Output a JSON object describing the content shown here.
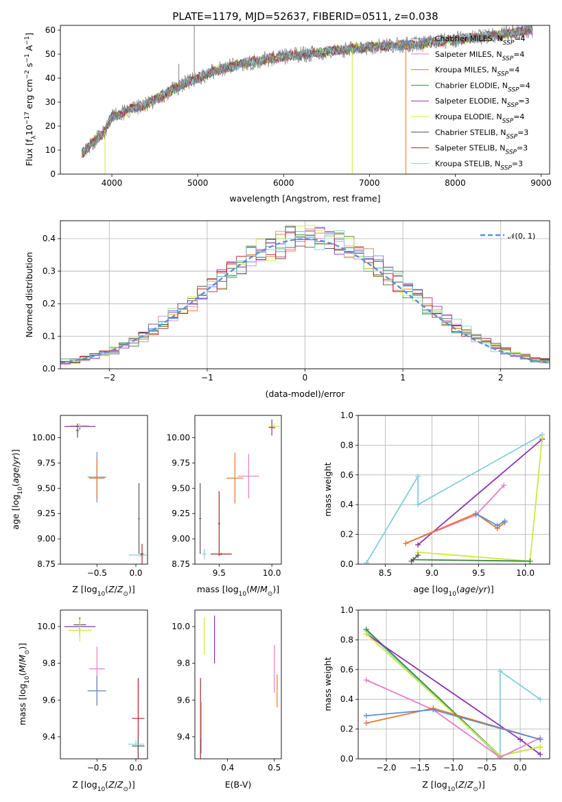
{
  "figure": {
    "title": "PLATE=1179, MJD=52637, FIBERID=0511, z=0.038"
  },
  "colors": {
    "Chabrier MILES": "#5b8fd6",
    "Salpeter MILES": "#e57ec4",
    "Kroupa MILES": "#e8762a",
    "Chabrier ELODIE": "#3d8a3d",
    "Salpeter ELODIE": "#8a2fb3",
    "Kroupa ELODIE": "#cfe83a",
    "Chabrier STELIB": "#555555",
    "Salpeter STELIB": "#b32020",
    "Kroupa STELIB": "#7fd0d6",
    "data": "#808080",
    "normal": "#5b8fd6"
  },
  "chart_data": [
    {
      "id": "spectrum",
      "type": "line",
      "title": "PLATE=1179, MJD=52637, FIBERID=0511, z=0.038",
      "xlabel": "wavelength [Angstrom, rest frame]",
      "ylabel": "Flux [f_λ 10^-17 erg cm^-2 s^-1 A^-1]",
      "xlim": [
        3400,
        9100
      ],
      "ylim": [
        0,
        62
      ],
      "xticks": [
        4000,
        5000,
        6000,
        7000,
        8000,
        9000
      ],
      "yticks": [
        0,
        10,
        20,
        30,
        40,
        50,
        60
      ],
      "legend_position": "top-right",
      "legend": [
        "Chabrier MILES, N_SSP=4",
        "Salpeter MILES, N_SSP=4",
        "Kroupa MILES, N_SSP=4",
        "Chabrier ELODIE, N_SSP=4",
        "Salpeter ELODIE, N_SSP=3",
        "Kroupa ELODIE, N_SSP=4",
        "Chabrier STELIB, N_SSP=3",
        "Salpeter STELIB, N_SSP=3",
        "Kroupa STELIB, N_SSP=3"
      ],
      "legend_colors": [
        "#5b8fd6",
        "#e57ec4",
        "#e8762a",
        "#3d8a3d",
        "#8a2fb3",
        "#cfe83a",
        "#555555",
        "#b32020",
        "#7fd0d6"
      ],
      "continuum": {
        "x": [
          3650,
          3700,
          3800,
          3900,
          4000,
          4100,
          4200,
          4400,
          4600,
          4800,
          5000,
          5200,
          5500,
          6000,
          6500,
          7000,
          7500,
          8000,
          8500,
          8900
        ],
        "y": [
          9,
          10,
          14,
          17,
          24,
          25,
          27,
          29,
          33,
          37,
          40,
          43,
          46,
          49,
          51,
          53,
          54,
          56,
          58,
          60
        ]
      },
      "spikes": [
        {
          "x": 3920,
          "y": 0,
          "series": "Kroupa ELODIE"
        },
        {
          "x": 6800,
          "y": 0,
          "series": "Kroupa ELODIE"
        },
        {
          "x": 7425,
          "y": 0,
          "series": "Kroupa MILES"
        },
        {
          "x": 4960,
          "y": 62,
          "series": "data"
        },
        {
          "x": 4780,
          "y": 46,
          "series": "data"
        }
      ]
    },
    {
      "id": "residuals",
      "type": "line",
      "xlabel": "(data-model)/error",
      "ylabel": "Normed distribution",
      "xlim": [
        -2.5,
        2.5
      ],
      "ylim": [
        0,
        0.455
      ],
      "xticks": [
        -2,
        -1,
        0,
        1,
        2
      ],
      "xticklabels": [
        "−2",
        "−1",
        "0",
        "1",
        "2"
      ],
      "yticks": [
        0.0,
        0.1,
        0.2,
        0.3,
        0.4
      ],
      "yticklabels": [
        "0.0",
        "0.1",
        "0.2",
        "0.3",
        "0.4"
      ],
      "grid": true,
      "legend_position": "top-right",
      "legend": [
        "𝒩(0, 1)"
      ],
      "normal_mean": 0,
      "normal_sigma": 1,
      "bin_width": 0.1
    },
    {
      "id": "age_vs_z",
      "type": "scatter",
      "xlabel": "Z [log10(Z/Z_sun)]",
      "ylabel": "age  [log10(age/yr)]",
      "xlim": [
        -0.97,
        0.15
      ],
      "ylim": [
        8.75,
        10.22
      ],
      "xticks": [
        -0.5,
        0.0
      ],
      "xticklabels": [
        "−0.5",
        "0.0"
      ],
      "yticks": [
        8.75,
        9.0,
        9.25,
        9.5,
        9.75,
        10.0
      ],
      "yticklabels": [
        "8.75",
        "9.00",
        "9.25",
        "9.50",
        "9.75",
        "10.00"
      ],
      "points": [
        {
          "x": -0.72,
          "y": 10.11,
          "xerr": 0.2,
          "yerr": 0.03,
          "series": "Salpeter ELODIE"
        },
        {
          "x": -0.72,
          "y": 10.12,
          "xerr": 0.12,
          "yerr": 0.02,
          "series": "Kroupa ELODIE"
        },
        {
          "x": -0.75,
          "y": 10.07,
          "xerr": 0.02,
          "yerr": 0.07,
          "series": "Chabrier STELIB"
        },
        {
          "x": -0.5,
          "y": 9.61,
          "xerr": 0.12,
          "yerr": 0.25,
          "series": "Chabrier MILES"
        },
        {
          "x": -0.5,
          "y": 9.6,
          "xerr": 0.1,
          "yerr": 0.2,
          "series": "Kroupa MILES"
        },
        {
          "x": 0.06,
          "y": 8.84,
          "xerr": 0.15,
          "yerr": 0.02,
          "series": "Kroupa STELIB"
        },
        {
          "x": 0.04,
          "y": 9.2,
          "xerr": 0.01,
          "yerr": 0.35,
          "series": "Chabrier STELIB"
        },
        {
          "x": 0.08,
          "y": 8.85,
          "xerr": 0.02,
          "yerr": 0.1,
          "series": "Salpeter STELIB"
        }
      ]
    },
    {
      "id": "age_vs_mass",
      "type": "scatter",
      "xlabel": "mass [log10(M/M_sun)]",
      "xlim": [
        9.27,
        10.09
      ],
      "ylim": [
        8.75,
        10.22
      ],
      "xticks": [
        9.5,
        10.0
      ],
      "xticklabels": [
        "9.5",
        "10.0"
      ],
      "yticks": [
        8.75,
        9.0,
        9.25,
        9.5,
        9.75,
        10.0
      ],
      "yticklabels": [
        "8.75",
        "9.00",
        "9.25",
        "9.50",
        "9.75",
        "10.00"
      ],
      "points": [
        {
          "x": 10.02,
          "y": 10.11,
          "xerr": 0.05,
          "yerr": 0.03,
          "series": "Kroupa ELODIE"
        },
        {
          "x": 10.0,
          "y": 10.1,
          "xerr": 0.03,
          "yerr": 0.08,
          "series": "Salpeter ELODIE"
        },
        {
          "x": 9.65,
          "y": 9.6,
          "xerr": 0.08,
          "yerr": 0.25,
          "series": "Kroupa MILES"
        },
        {
          "x": 9.78,
          "y": 9.62,
          "xerr": 0.1,
          "yerr": 0.22,
          "series": "Salpeter MILES"
        },
        {
          "x": 9.32,
          "y": 9.2,
          "xerr": 0.01,
          "yerr": 0.35,
          "series": "Chabrier STELIB"
        },
        {
          "x": 9.36,
          "y": 8.85,
          "xerr": 0.02,
          "yerr": 0.05,
          "series": "Kroupa STELIB"
        },
        {
          "x": 9.5,
          "y": 9.15,
          "xerr": 0.01,
          "yerr": 0.32,
          "series": "Salpeter STELIB"
        },
        {
          "x": 9.52,
          "y": 8.85,
          "xerr": 0.1,
          "yerr": 0.01,
          "series": "Salpeter STELIB"
        }
      ]
    },
    {
      "id": "massweight_vs_age",
      "type": "line",
      "xlabel": "age  [log10(age/yr)]",
      "ylabel": "mass weight",
      "xlim": [
        8.21,
        10.26
      ],
      "ylim": [
        0,
        1
      ],
      "xticks": [
        8.5,
        9.0,
        9.5,
        10.0
      ],
      "xticklabels": [
        "8.5",
        "9.0",
        "9.5",
        "10.0"
      ],
      "yticks": [
        0.0,
        0.2,
        0.4,
        0.6,
        0.8,
        1.0
      ],
      "yticklabels": [
        "0.0",
        "0.2",
        "0.4",
        "0.6",
        "0.8",
        "1.0"
      ],
      "grid": true,
      "series": [
        {
          "series": "Kroupa STELIB",
          "x": [
            8.3,
            8.85,
            8.85,
            10.18
          ],
          "y": [
            0.01,
            0.59,
            0.4,
            0.87
          ]
        },
        {
          "series": "Salpeter ELODIE",
          "x": [
            8.85,
            10.18
          ],
          "y": [
            0.13,
            0.84
          ]
        },
        {
          "series": "Salpeter MILES",
          "x": [
            8.72,
            9.47,
            9.77
          ],
          "y": [
            0.14,
            0.33,
            0.53
          ]
        },
        {
          "series": "Kroupa MILES",
          "x": [
            8.72,
            9.47,
            9.7,
            9.78
          ],
          "y": [
            0.14,
            0.34,
            0.24,
            0.28
          ]
        },
        {
          "series": "Chabrier MILES",
          "x": [
            9.47,
            9.7,
            9.78
          ],
          "y": [
            0.34,
            0.26,
            0.29
          ]
        },
        {
          "series": "Kroupa ELODIE",
          "x": [
            8.85,
            10.05,
            10.18
          ],
          "y": [
            0.08,
            0.02,
            0.85
          ]
        },
        {
          "series": "Chabrier ELODIE",
          "x": [
            8.8,
            10.05
          ],
          "y": [
            0.03,
            0.02
          ]
        },
        {
          "series": "Chabrier STELIB",
          "x": [
            8.78,
            8.85
          ],
          "y": [
            0.02,
            0.06
          ]
        }
      ]
    },
    {
      "id": "mass_vs_z",
      "type": "scatter",
      "xlabel": "Z [log10(Z/Z_sun)]",
      "ylabel": "mass [log10(M/M_sun)]",
      "xlim": [
        -0.97,
        0.15
      ],
      "ylim": [
        9.28,
        10.09
      ],
      "xticks": [
        -0.5,
        0.0
      ],
      "xticklabels": [
        "−0.5",
        "0.0"
      ],
      "yticks": [
        9.4,
        9.6,
        9.8,
        10.0
      ],
      "yticklabels": [
        "9.4",
        "9.6",
        "9.8",
        "10.0"
      ],
      "points": [
        {
          "x": -0.72,
          "y": 10.0,
          "xerr": 0.2,
          "yerr": 0.05,
          "series": "Salpeter ELODIE"
        },
        {
          "x": -0.72,
          "y": 10.01,
          "xerr": 0.08,
          "yerr": 0.04,
          "series": "Chabrier STELIB"
        },
        {
          "x": -0.72,
          "y": 9.98,
          "xerr": 0.15,
          "yerr": 0.06,
          "series": "Kroupa ELODIE"
        },
        {
          "x": -0.5,
          "y": 9.77,
          "xerr": 0.1,
          "yerr": 0.12,
          "series": "Salpeter MILES"
        },
        {
          "x": -0.5,
          "y": 9.65,
          "xerr": 0.1,
          "yerr": 0.08,
          "series": "Kroupa MILES"
        },
        {
          "x": -0.5,
          "y": 9.65,
          "xerr": 0.12,
          "yerr": 0.08,
          "series": "Chabrier MILES"
        },
        {
          "x": 0.03,
          "y": 9.5,
          "xerr": 0.08,
          "yerr": 0.22,
          "series": "Salpeter STELIB"
        },
        {
          "x": 0.03,
          "y": 9.35,
          "xerr": 0.08,
          "yerr": 0.04,
          "series": "Chabrier STELIB"
        },
        {
          "x": 0.0,
          "y": 9.36,
          "xerr": 0.1,
          "yerr": 0.02,
          "series": "Kroupa STELIB"
        }
      ]
    },
    {
      "id": "mass_vs_ebv",
      "type": "scatter",
      "xlabel": "E(B-V)",
      "xlim": [
        0.33,
        0.515
      ],
      "ylim": [
        9.28,
        10.09
      ],
      "xticks": [
        0.4,
        0.5
      ],
      "xticklabels": [
        "0.4",
        "0.5"
      ],
      "yticks": [
        9.4,
        9.6,
        9.8,
        10.0
      ],
      "yticklabels": [
        "9.4",
        "9.6",
        "9.8",
        "10.0"
      ],
      "points": [
        {
          "x": 0.35,
          "y": 9.95,
          "xerr": 0.0,
          "yerr": 0.1,
          "series": "Kroupa ELODIE"
        },
        {
          "x": 0.372,
          "y": 9.93,
          "xerr": 0.0,
          "yerr": 0.13,
          "series": "Salpeter ELODIE"
        },
        {
          "x": 0.5,
          "y": 9.77,
          "xerr": 0.0,
          "yerr": 0.13,
          "series": "Salpeter MILES"
        },
        {
          "x": 0.506,
          "y": 9.65,
          "xerr": 0.0,
          "yerr": 0.09,
          "series": "Kroupa MILES"
        },
        {
          "x": 0.342,
          "y": 9.5,
          "xerr": 0.0,
          "yerr": 0.22,
          "series": "Salpeter STELIB"
        },
        {
          "x": 0.343,
          "y": 9.35,
          "xerr": 0.0,
          "yerr": 0.04,
          "series": "Chabrier STELIB"
        },
        {
          "x": 0.344,
          "y": 9.45,
          "xerr": 0.0,
          "yerr": 0.14,
          "series": "Kroupa STELIB"
        }
      ]
    },
    {
      "id": "massweight_vs_z",
      "type": "line",
      "xlabel": "Z [log10(Z/Z_sun)]",
      "ylabel": "mass weight",
      "xlim": [
        -2.42,
        0.44
      ],
      "ylim": [
        0,
        1
      ],
      "xticks": [
        -2.0,
        -1.5,
        -1.0,
        -0.5,
        0.0
      ],
      "xticklabels": [
        "−2.0",
        "−1.5",
        "−1.0",
        "−0.5",
        "0.0"
      ],
      "yticks": [
        0.0,
        0.2,
        0.4,
        0.6,
        0.8,
        1.0
      ],
      "yticklabels": [
        "0.0",
        "0.2",
        "0.4",
        "0.6",
        "0.8",
        "1.0"
      ],
      "grid": true,
      "series": [
        {
          "series": "Kroupa STELIB",
          "x": [
            -2.3,
            -0.3,
            -0.3,
            0.3
          ],
          "y": [
            0.86,
            0.01,
            0.59,
            0.4
          ]
        },
        {
          "series": "Chabrier ELODIE",
          "x": [
            -2.3,
            -0.3,
            0.3
          ],
          "y": [
            0.87,
            0.02,
            0.08
          ]
        },
        {
          "series": "Salpeter ELODIE",
          "x": [
            -2.3,
            0.0,
            0.3
          ],
          "y": [
            0.84,
            0.13,
            0.03
          ]
        },
        {
          "series": "Kroupa ELODIE",
          "x": [
            -2.3,
            -0.3,
            0.3
          ],
          "y": [
            0.84,
            0.02,
            0.08
          ]
        },
        {
          "series": "Salpeter MILES",
          "x": [
            -2.3,
            -1.3,
            -0.3,
            0.3
          ],
          "y": [
            0.53,
            0.33,
            0.01,
            0.14
          ]
        },
        {
          "series": "Kroupa MILES",
          "x": [
            -2.3,
            -1.3,
            0.3
          ],
          "y": [
            0.24,
            0.34,
            0.13
          ]
        },
        {
          "series": "Chabrier MILES",
          "x": [
            -2.3,
            -1.3,
            0.3
          ],
          "y": [
            0.29,
            0.33,
            0.13
          ]
        }
      ]
    }
  ]
}
